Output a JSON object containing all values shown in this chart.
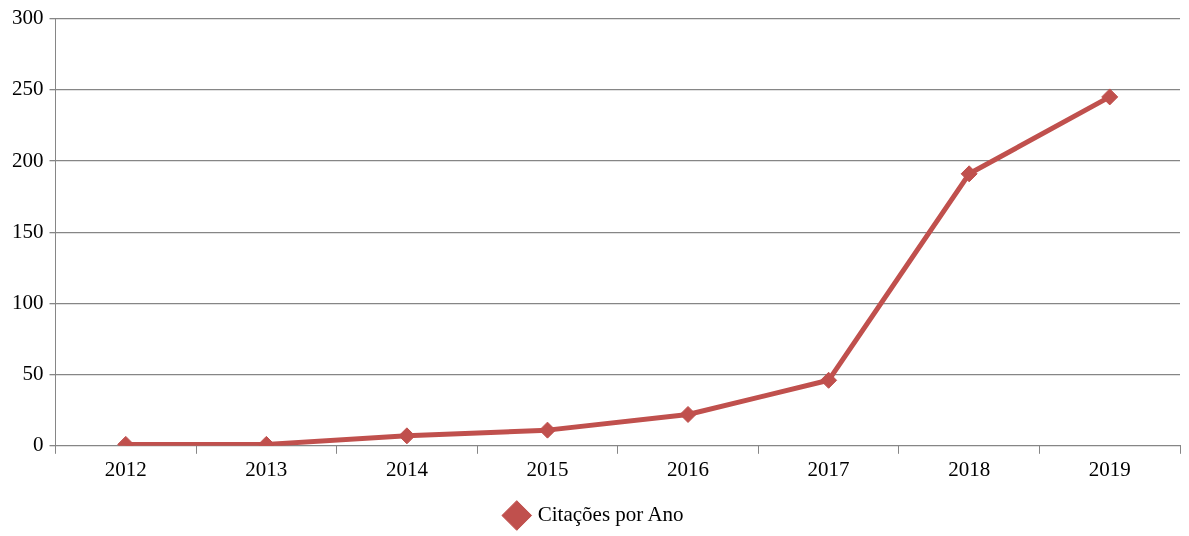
{
  "chart_data": {
    "type": "line",
    "categories": [
      "2012",
      "2013",
      "2014",
      "2015",
      "2016",
      "2017",
      "2018",
      "2019"
    ],
    "series": [
      {
        "name": "Citações por Ano",
        "color": "#c0504d",
        "values": [
          1,
          1,
          7,
          11,
          22,
          46,
          191,
          245
        ]
      }
    ],
    "ylim": [
      0,
      300
    ],
    "yticks": [
      0,
      50,
      100,
      150,
      200,
      250,
      300
    ],
    "grid": "y",
    "legend": "bottom",
    "marker": "diamond",
    "line_style": "solid"
  }
}
